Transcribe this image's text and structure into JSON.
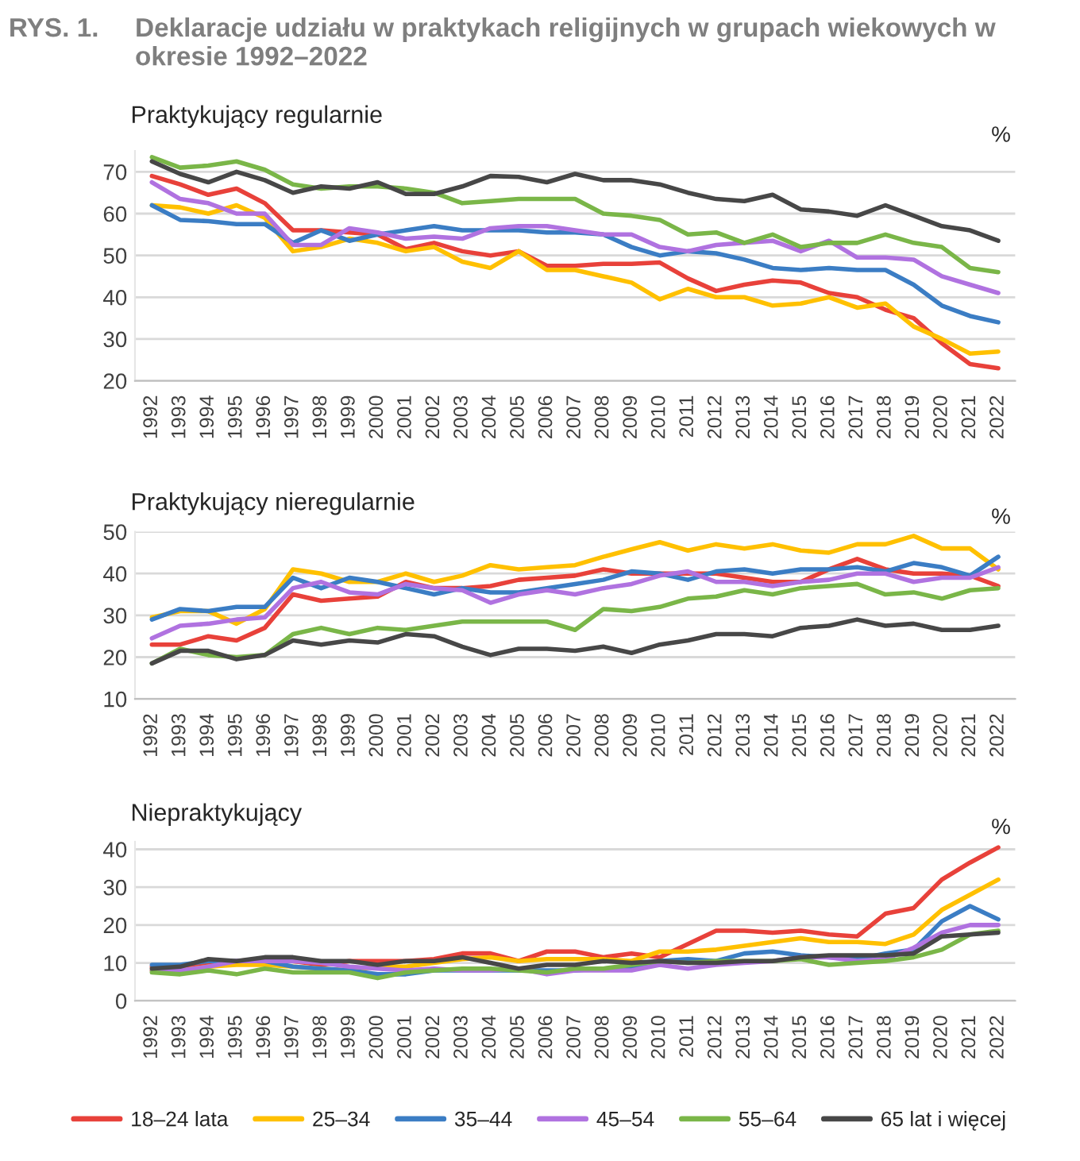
{
  "chart_data": [
    {
      "type": "line",
      "title": "Praktykujący regularnie",
      "ylabel": "%",
      "annotations": [
        "RYS. 1.",
        "Deklaracje udziału w praktykach religijnych w grupach wiekowych w okresie 1992–2022"
      ],
      "categories": [
        "1992",
        "1993",
        "1994",
        "1995",
        "1996",
        "1997",
        "1998",
        "1999",
        "2000",
        "2001",
        "2002",
        "2003",
        "2004",
        "2005",
        "2006",
        "2007",
        "2008",
        "2009",
        "2010",
        "2011",
        "2012",
        "2013",
        "2014",
        "2015",
        "2016",
        "2017",
        "2018",
        "2019",
        "2020",
        "2021",
        "2022"
      ],
      "ylim": [
        20,
        75
      ],
      "yticks": [
        20,
        30,
        40,
        50,
        60,
        70
      ],
      "grid": "y",
      "marker": "none",
      "line_style": "solid",
      "legend": "bottom",
      "series": [
        {
          "name": "18–24 lata",
          "color": "#e8413a",
          "values": [
            69,
            67,
            64.5,
            66,
            62.5,
            56,
            56,
            55.5,
            55,
            51.5,
            53,
            51,
            50,
            51,
            47.5,
            47.5,
            48,
            48,
            48.3,
            44.5,
            41.5,
            43,
            44,
            43.5,
            41,
            40,
            37,
            35,
            29,
            24,
            23
          ]
        },
        {
          "name": "25–34",
          "color": "#ffc000",
          "values": [
            62,
            61.5,
            60,
            62,
            59,
            51,
            52,
            54,
            53,
            51,
            52,
            48.5,
            47,
            51,
            46.5,
            46.5,
            45,
            43.5,
            39.5,
            42,
            40,
            40,
            38,
            38.5,
            40,
            37.5,
            38.5,
            33,
            30,
            26.5,
            27
          ]
        },
        {
          "name": "35–44",
          "color": "#3b7dc4",
          "values": [
            62,
            58.5,
            58.2,
            57.5,
            57.5,
            53,
            56,
            53.5,
            55,
            56,
            57,
            56,
            56,
            56,
            55.5,
            55.5,
            55,
            52,
            50,
            51,
            50.5,
            49,
            47,
            46.5,
            47,
            46.5,
            46.5,
            43,
            38,
            35.5,
            34
          ]
        },
        {
          "name": "45–54",
          "color": "#b072e0",
          "values": [
            67.5,
            63.5,
            62.5,
            60,
            60,
            52.5,
            52.5,
            56.5,
            55.5,
            54,
            54.5,
            54,
            56.5,
            57,
            57,
            56,
            55,
            55,
            52,
            51,
            52.5,
            53,
            53.5,
            51,
            53.5,
            49.5,
            49.5,
            49,
            45,
            43,
            41
          ]
        },
        {
          "name": "55–64",
          "color": "#7ab648",
          "values": [
            73.5,
            71,
            71.5,
            72.5,
            70.5,
            67,
            66,
            66.5,
            66.5,
            66,
            65,
            62.5,
            63,
            63.5,
            63.5,
            63.5,
            60,
            59.5,
            58.5,
            55,
            55.5,
            53,
            55,
            52,
            53,
            53,
            55,
            53,
            52,
            47,
            46
          ]
        },
        {
          "name": "65 lat i więcej",
          "color": "#474747",
          "values": [
            72.5,
            69.5,
            67.5,
            70,
            68,
            65,
            66.5,
            66,
            67.5,
            64.7,
            64.7,
            66.5,
            69,
            68.8,
            67.5,
            69.5,
            68,
            68,
            67,
            65,
            63.5,
            63,
            64.5,
            61,
            60.5,
            59.5,
            62,
            59.5,
            57,
            56,
            53.5
          ]
        }
      ]
    },
    {
      "type": "line",
      "title": "Praktykujący nieregularnie",
      "ylabel": "%",
      "categories": [
        "1992",
        "1993",
        "1994",
        "1995",
        "1996",
        "1997",
        "1998",
        "1999",
        "2000",
        "2001",
        "2002",
        "2003",
        "2004",
        "2005",
        "2006",
        "2007",
        "2008",
        "2009",
        "2010",
        "2011",
        "2012",
        "2013",
        "2014",
        "2015",
        "2016",
        "2017",
        "2018",
        "2019",
        "2020",
        "2021",
        "2022"
      ],
      "ylim": [
        10,
        50
      ],
      "yticks": [
        10,
        20,
        30,
        40,
        50
      ],
      "grid": "y",
      "marker": "none",
      "line_style": "solid",
      "series": [
        {
          "color": "#e8413a",
          "values": [
            23,
            23,
            25,
            24,
            27,
            35,
            33.5,
            34,
            34.5,
            38,
            36.5,
            36.5,
            37,
            38.5,
            39,
            39.5,
            41,
            40,
            40,
            40,
            40,
            39,
            38,
            38,
            41,
            43.5,
            41,
            40,
            40,
            39.5,
            37
          ]
        },
        {
          "color": "#ffc000",
          "values": [
            29.5,
            31,
            31,
            28,
            31.5,
            41,
            40,
            38,
            38,
            40,
            38,
            39.5,
            42,
            41,
            41.5,
            42,
            44,
            45.8,
            47.5,
            45.5,
            47,
            46,
            47,
            45.5,
            45,
            47,
            47,
            49,
            46,
            46,
            41
          ]
        },
        {
          "color": "#3b7dc4",
          "values": [
            29,
            31.5,
            31,
            32,
            32,
            39,
            36.5,
            39,
            38,
            36.5,
            35,
            36.5,
            35.5,
            35.5,
            36.5,
            37.5,
            38.5,
            40.5,
            40,
            38.5,
            40.5,
            41,
            40,
            41,
            41,
            41.5,
            40.5,
            42.5,
            41.5,
            39.5,
            44
          ]
        },
        {
          "color": "#b072e0",
          "values": [
            24.5,
            27.5,
            28,
            29,
            29.5,
            36.5,
            38,
            35.5,
            35,
            37.5,
            36.5,
            36,
            33,
            35,
            36,
            35,
            36.5,
            37.5,
            39.5,
            40.5,
            38,
            38,
            37,
            38,
            38.5,
            40,
            40,
            38,
            39,
            39,
            41.5
          ]
        },
        {
          "color": "#7ab648",
          "values": [
            18.5,
            22,
            20.5,
            20,
            20.5,
            25.5,
            27,
            25.5,
            27,
            26.5,
            27.5,
            28.5,
            28.5,
            28.5,
            28.5,
            26.5,
            31.5,
            31,
            32,
            34,
            34.5,
            36,
            35,
            36.5,
            37,
            37.5,
            35,
            35.5,
            34,
            36,
            36.5
          ]
        },
        {
          "color": "#474747",
          "values": [
            18.5,
            21.5,
            21.5,
            19.5,
            20.5,
            24,
            23,
            24,
            23.5,
            25.5,
            25,
            22.5,
            20.5,
            22,
            22,
            21.5,
            22.5,
            21,
            23,
            24,
            25.5,
            25.5,
            25,
            27,
            27.5,
            29,
            27.5,
            28,
            26.5,
            26.5,
            27.5
          ]
        }
      ]
    },
    {
      "type": "line",
      "title": "Niepraktykujący",
      "ylabel": "%",
      "categories": [
        "1992",
        "1993",
        "1994",
        "1995",
        "1996",
        "1997",
        "1998",
        "1999",
        "2000",
        "2001",
        "2002",
        "2003",
        "2004",
        "2005",
        "2006",
        "2007",
        "2008",
        "2009",
        "2010",
        "2011",
        "2012",
        "2013",
        "2014",
        "2015",
        "2016",
        "2017",
        "2018",
        "2019",
        "2020",
        "2021",
        "2022"
      ],
      "ylim": [
        0,
        42
      ],
      "yticks": [
        0,
        10,
        20,
        30,
        40
      ],
      "grid": "y",
      "marker": "none",
      "line_style": "solid",
      "series": [
        {
          "color": "#e8413a",
          "values": [
            9,
            9,
            10,
            10.5,
            11,
            10.5,
            9.5,
            10.5,
            10.5,
            10.5,
            11,
            12.5,
            12.5,
            10.5,
            13,
            13,
            11.5,
            12.5,
            11.5,
            15,
            18.5,
            18.5,
            18,
            18.5,
            17.5,
            17,
            23,
            24.5,
            32,
            36.5,
            40.5
          ]
        },
        {
          "color": "#ffc000",
          "values": [
            8,
            8,
            9,
            9.5,
            9.5,
            9,
            8.5,
            8,
            9,
            9,
            10,
            11,
            11.5,
            10.5,
            11,
            11,
            11,
            10.5,
            13,
            13,
            13.5,
            14.5,
            15.5,
            16.5,
            15.5,
            15.5,
            15,
            17.5,
            24,
            28,
            32
          ]
        },
        {
          "color": "#3b7dc4",
          "values": [
            9.5,
            9.5,
            10.5,
            10.5,
            10.5,
            9,
            8.5,
            8,
            7,
            7,
            8,
            8,
            8,
            8,
            8,
            8,
            8.5,
            8.5,
            10.5,
            11,
            10.5,
            12.5,
            13,
            12,
            11.5,
            11,
            12.5,
            13.5,
            21,
            25,
            21.5
          ]
        },
        {
          "color": "#b072e0",
          "values": [
            8,
            8,
            9,
            10.5,
            10.5,
            10.5,
            10,
            9,
            8.5,
            8,
            8.5,
            8,
            8,
            8.5,
            7,
            8,
            8,
            8,
            9.5,
            8.5,
            9.5,
            10,
            10.5,
            11.5,
            11.5,
            10.5,
            11,
            14,
            18,
            20,
            20
          ]
        },
        {
          "color": "#7ab648",
          "values": [
            7.5,
            7,
            8,
            7,
            8.5,
            7.5,
            7.5,
            7.5,
            6,
            7.5,
            8,
            8.5,
            8.5,
            8,
            7.5,
            8.5,
            8.5,
            9.5,
            10.5,
            10,
            10.5,
            10.5,
            10.5,
            11,
            9.5,
            10,
            10.5,
            11.5,
            13.5,
            17.5,
            18.5
          ]
        },
        {
          "color": "#474747",
          "values": [
            8.5,
            9,
            11,
            10.5,
            11.5,
            11.5,
            10.5,
            10.5,
            9.5,
            10.5,
            10.5,
            11.5,
            10,
            8.5,
            9.5,
            9.5,
            10.5,
            10,
            10.5,
            10,
            10,
            10.5,
            10.5,
            11.5,
            12,
            12,
            12,
            12.5,
            17,
            17.5,
            18
          ]
        }
      ]
    }
  ]
}
